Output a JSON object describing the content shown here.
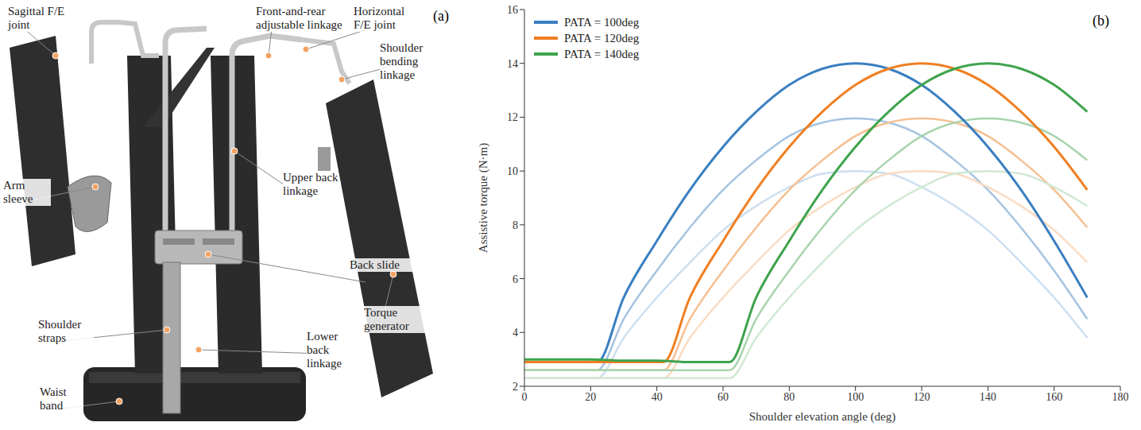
{
  "diagram": {
    "panel_label": "(a)",
    "labels": [
      {
        "text": "Sagittal F/E joint"
      },
      {
        "text": "Front-and-rear adjustable linkage"
      },
      {
        "text": "Horizontal F/E joint"
      },
      {
        "text": "Shoulder bending linkage"
      },
      {
        "text": "Upper back linkage"
      },
      {
        "text": "Arm sleeve"
      },
      {
        "text": "Back slide"
      },
      {
        "text": "Torque generator"
      },
      {
        "text": "Shoulder straps"
      },
      {
        "text": "Lower back linkage"
      },
      {
        "text": "Waist band"
      }
    ]
  },
  "chart_data": {
    "type": "line",
    "panel_label": "(b)",
    "xlabel": "Shoulder elevation angle (deg)",
    "ylabel": "Assistive torque (N·m)",
    "xlim": [
      0,
      180
    ],
    "xticks": [
      0,
      20,
      40,
      60,
      80,
      100,
      120,
      140,
      160,
      180
    ],
    "ylim": [
      2,
      16
    ],
    "yticks": [
      2,
      4,
      6,
      8,
      10,
      12,
      14,
      16
    ],
    "legend": "upper left",
    "series": [
      {
        "name": "PATA = 100deg",
        "color": "#3a7fc1",
        "x": [
          0,
          10,
          20,
          22,
          30,
          40,
          50,
          60,
          70,
          80,
          90,
          100,
          110,
          120,
          130,
          140,
          150,
          160,
          170
        ],
        "values": [
          2.9,
          2.9,
          2.9,
          2.9,
          5.3,
          7.4,
          9.3,
          10.9,
          12.2,
          13.2,
          13.8,
          14,
          13.8,
          13.2,
          12.2,
          10.9,
          9.3,
          7.4,
          5.3
        ]
      },
      {
        "name": "PATA = 120deg",
        "color": "#f07f22",
        "x": [
          0,
          10,
          20,
          30,
          40,
          42,
          50,
          60,
          70,
          80,
          90,
          100,
          110,
          120,
          130,
          140,
          150,
          160,
          170
        ],
        "values": [
          2.9,
          2.9,
          2.9,
          2.9,
          2.9,
          2.9,
          5.3,
          7.4,
          9.3,
          10.9,
          12.2,
          13.2,
          13.8,
          14,
          13.8,
          13.2,
          12.2,
          10.9,
          9.3
        ]
      },
      {
        "name": "PATA = 140deg",
        "color": "#3fa34d",
        "x": [
          0,
          10,
          20,
          30,
          40,
          50,
          60,
          62,
          70,
          80,
          90,
          100,
          110,
          120,
          130,
          140,
          150,
          160,
          170
        ],
        "values": [
          3.0,
          3.0,
          3.0,
          2.95,
          2.95,
          2.9,
          2.9,
          2.9,
          5.3,
          7.4,
          9.3,
          10.9,
          12.2,
          13.2,
          13.8,
          14,
          13.8,
          13.2,
          12.2
        ]
      },
      {
        "color": "#a5c3e1",
        "x": [
          0,
          10,
          20,
          22,
          30,
          40,
          50,
          60,
          70,
          80,
          90,
          100,
          110,
          120,
          130,
          140,
          150,
          160,
          170
        ],
        "values": [
          2.6,
          2.6,
          2.6,
          2.6,
          4.5,
          6.3,
          7.9,
          9.3,
          10.4,
          11.3,
          11.8,
          11.95,
          11.8,
          11.3,
          10.4,
          9.3,
          7.9,
          6.3,
          4.5
        ]
      },
      {
        "color": "#cddff0",
        "x": [
          0,
          10,
          20,
          22,
          30,
          40,
          50,
          60,
          70,
          80,
          90,
          100,
          110,
          120,
          130,
          140,
          150,
          160,
          170
        ],
        "values": [
          2.3,
          2.3,
          2.3,
          2.3,
          3.8,
          5.3,
          6.6,
          7.8,
          8.7,
          9.4,
          9.9,
          10,
          9.9,
          9.4,
          8.7,
          7.8,
          6.6,
          5.3,
          3.8
        ]
      },
      {
        "color": "#f6bf91",
        "x": [
          0,
          10,
          20,
          30,
          40,
          42,
          50,
          60,
          70,
          80,
          90,
          100,
          110,
          120,
          130,
          140,
          150,
          160,
          170
        ],
        "values": [
          2.6,
          2.6,
          2.6,
          2.6,
          2.6,
          2.6,
          4.5,
          6.3,
          7.9,
          9.3,
          10.4,
          11.3,
          11.8,
          11.95,
          11.8,
          11.3,
          10.4,
          9.3,
          7.9
        ]
      },
      {
        "color": "#fadbc2",
        "x": [
          0,
          10,
          20,
          30,
          40,
          42,
          50,
          60,
          70,
          80,
          90,
          100,
          110,
          120,
          130,
          140,
          150,
          160,
          170
        ],
        "values": [
          2.3,
          2.3,
          2.3,
          2.3,
          2.3,
          2.3,
          3.8,
          5.3,
          6.6,
          7.8,
          8.7,
          9.4,
          9.9,
          10,
          9.9,
          9.4,
          8.7,
          7.8,
          6.6
        ]
      },
      {
        "color": "#a8d4ad",
        "x": [
          0,
          10,
          20,
          30,
          40,
          50,
          60,
          62,
          70,
          80,
          90,
          100,
          110,
          120,
          130,
          140,
          150,
          160,
          170
        ],
        "values": [
          2.6,
          2.6,
          2.6,
          2.6,
          2.6,
          2.6,
          2.6,
          2.6,
          4.5,
          6.3,
          7.9,
          9.3,
          10.4,
          11.3,
          11.8,
          11.95,
          11.8,
          11.3,
          10.4
        ]
      },
      {
        "color": "#d0e8d3",
        "x": [
          0,
          10,
          20,
          30,
          40,
          50,
          60,
          62,
          70,
          80,
          90,
          100,
          110,
          120,
          130,
          140,
          150,
          160,
          170
        ],
        "values": [
          2.3,
          2.3,
          2.3,
          2.3,
          2.3,
          2.3,
          2.3,
          2.3,
          3.8,
          5.3,
          6.6,
          7.8,
          8.7,
          9.4,
          9.9,
          10,
          9.9,
          9.4,
          8.7
        ]
      }
    ]
  }
}
